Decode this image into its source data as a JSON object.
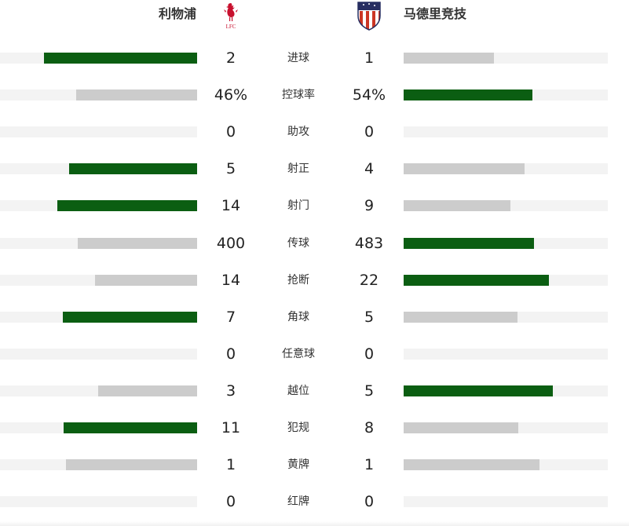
{
  "home": {
    "name": "利物浦",
    "logo_text": "LFC",
    "logo_icon": "liverbird-crest-icon",
    "color": "#c8102e"
  },
  "away": {
    "name": "马德里竞技",
    "logo_icon": "atletico-madrid-crest-icon",
    "colors": [
      "#cb3524",
      "#272e61"
    ]
  },
  "colors": {
    "leader": "#0b5e12",
    "trailer": "#cccccc",
    "track": "#f3f3f3"
  },
  "stats": [
    {
      "label": "进球",
      "home": "2",
      "away": "1",
      "home_share": 0.667,
      "away_share": 0.333
    },
    {
      "label": "控球率",
      "home": "46%",
      "away": "54%",
      "home_share": 0.46,
      "away_share": 0.54
    },
    {
      "label": "助攻",
      "home": "0",
      "away": "0",
      "home_share": 0,
      "away_share": 0
    },
    {
      "label": "射正",
      "home": "5",
      "away": "4",
      "home_share": 0.556,
      "away_share": 0.444
    },
    {
      "label": "射门",
      "home": "14",
      "away": "9",
      "home_share": 0.609,
      "away_share": 0.391
    },
    {
      "label": "传球",
      "home": "400",
      "away": "483",
      "home_share": 0.453,
      "away_share": 0.547
    },
    {
      "label": "抢断",
      "home": "14",
      "away": "22",
      "home_share": 0.389,
      "away_share": 0.611
    },
    {
      "label": "角球",
      "home": "7",
      "away": "5",
      "home_share": 0.583,
      "away_share": 0.417
    },
    {
      "label": "任意球",
      "home": "0",
      "away": "0",
      "home_share": 0,
      "away_share": 0
    },
    {
      "label": "越位",
      "home": "3",
      "away": "5",
      "home_share": 0.375,
      "away_share": 0.625
    },
    {
      "label": "犯规",
      "home": "11",
      "away": "8",
      "home_share": 0.579,
      "away_share": 0.421
    },
    {
      "label": "黄牌",
      "home": "1",
      "away": "1",
      "home_share": 0.5,
      "away_share": 0.5
    },
    {
      "label": "红牌",
      "home": "0",
      "away": "0",
      "home_share": 0,
      "away_share": 0
    }
  ]
}
